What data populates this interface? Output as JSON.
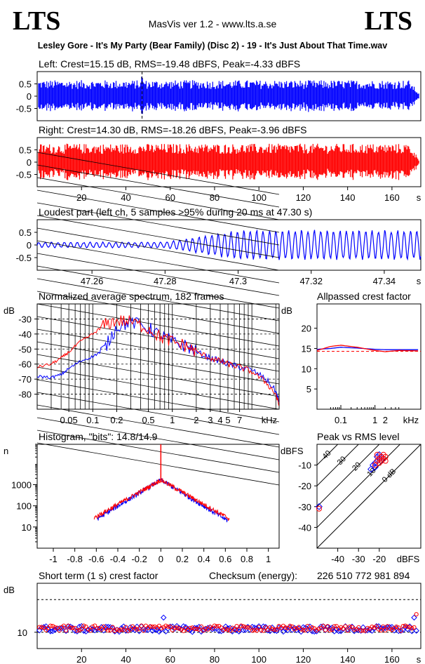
{
  "header": {
    "logo_left": "LTS",
    "logo_right": "LTS",
    "app_title": "MasVis ver 1.2 - www.lts.a.se",
    "file_title": "Lesley Gore - It's My Party (Bear Family) (Disc 2) - 19 - It's Just About That Time.wav"
  },
  "colors": {
    "left": "#0000ff",
    "right": "#ff0000",
    "axis": "#000000",
    "grid": "#000000"
  },
  "chart_data": [
    {
      "id": "left_waveform",
      "type": "area",
      "title": "Left: Crest=15.15 dB, RMS=-19.48 dBFS, Peak=-4.33 dBFS",
      "ylim": [
        -1,
        1
      ],
      "yticks": [
        "0.5",
        "0",
        "-0.5"
      ],
      "ytick_values": [
        0.5,
        0,
        -0.5
      ],
      "xlim": [
        0,
        173
      ],
      "loudest_marker_s": 47.3,
      "series": [
        {
          "color": "#0000ff",
          "amplitude": 0.65
        }
      ]
    },
    {
      "id": "right_waveform",
      "type": "area",
      "title": "Right: Crest=14.30 dB, RMS=-18.26 dBFS, Peak=-3.96 dBFS",
      "ylim": [
        -1,
        1
      ],
      "yticks": [
        "0.5",
        "0",
        "-0.5"
      ],
      "ytick_values": [
        0.5,
        0,
        -0.5
      ],
      "xlim": [
        0,
        173
      ],
      "xticks": [
        "20",
        "40",
        "60",
        "80",
        "100",
        "120",
        "140",
        "160"
      ],
      "xtick_values": [
        20,
        40,
        60,
        80,
        100,
        120,
        140,
        160
      ],
      "xunit": "s",
      "series": [
        {
          "color": "#ff0000",
          "amplitude": 0.75
        }
      ]
    },
    {
      "id": "loudest_part",
      "type": "line",
      "title": "Loudest part (left  ch, 5 samples >95% during 20 ms at 47.30 s)",
      "ylim": [
        -1,
        1
      ],
      "yticks": [
        "0.5",
        "0",
        "-0.5"
      ],
      "ytick_values": [
        0.5,
        0,
        -0.5
      ],
      "xlim": [
        47.245,
        47.35
      ],
      "xticks": [
        "47.26",
        "47.28",
        "47.3",
        "47.32",
        "47.34"
      ],
      "xtick_values": [
        47.26,
        47.28,
        47.3,
        47.32,
        47.34
      ],
      "xunit": "s",
      "series": [
        {
          "color": "#0000ff"
        }
      ]
    },
    {
      "id": "spectrum",
      "type": "line",
      "title": "Normalized average spectrum, 182 frames",
      "ylabel": "dB",
      "xunit": "kHz",
      "xscale": "log",
      "xlim": [
        0.02,
        22
      ],
      "ylim": [
        -90,
        -20
      ],
      "yticks": [
        "-30",
        "-40",
        "-50",
        "-60",
        "-70",
        "-80"
      ],
      "ytick_values": [
        -30,
        -40,
        -50,
        -60,
        -70,
        -80
      ],
      "xticks": [
        "0.05",
        "0.1",
        "0.2",
        "0.5",
        "1",
        "2",
        "3",
        "4",
        "5",
        "7"
      ],
      "xtick_values": [
        0.05,
        0.1,
        0.2,
        0.5,
        1,
        2,
        3,
        4,
        5,
        7
      ],
      "series": [
        {
          "name": "",
          "color": "#0000ff",
          "x": [
            0.02,
            0.03,
            0.04,
            0.05,
            0.07,
            0.1,
            0.14,
            0.2,
            0.3,
            0.5,
            0.7,
            1,
            1.5,
            2,
            3,
            4,
            5,
            7,
            10,
            15,
            20,
            22
          ],
          "y": [
            -68,
            -69,
            -67,
            -63,
            -58,
            -55,
            -50,
            -35,
            -32,
            -36,
            -41,
            -45,
            -48,
            -52,
            -56,
            -58,
            -60,
            -62,
            -64,
            -70,
            -78,
            -86
          ]
        },
        {
          "name": "",
          "color": "#ff0000",
          "x": [
            0.02,
            0.03,
            0.04,
            0.05,
            0.07,
            0.1,
            0.14,
            0.2,
            0.3,
            0.5,
            0.7,
            1,
            1.5,
            2,
            3,
            4,
            5,
            7,
            10,
            15,
            20,
            22
          ],
          "y": [
            -62,
            -60,
            -56,
            -52,
            -45,
            -40,
            -34,
            -31,
            -32,
            -36,
            -42,
            -45,
            -48,
            -52,
            -56,
            -58,
            -60,
            -62,
            -65,
            -72,
            -80,
            -88
          ]
        }
      ]
    },
    {
      "id": "allpassed_crest",
      "type": "line",
      "title": "Allpassed crest factor",
      "ylabel": "dB",
      "xunit": "kHz",
      "xscale": "log",
      "xlim": [
        0.02,
        22
      ],
      "ylim": [
        0,
        26
      ],
      "yticks": [
        "20",
        "15",
        "10",
        "5"
      ],
      "ytick_values": [
        20,
        15,
        10,
        5
      ],
      "xticks": [
        "0.1",
        "1",
        "2"
      ],
      "xtick_values": [
        0.1,
        1,
        2
      ],
      "dashed_ref": 14.3,
      "series": [
        {
          "color": "#0000ff",
          "x": [
            0.02,
            0.05,
            0.1,
            0.3,
            1,
            2,
            5,
            22
          ],
          "y": [
            14.8,
            15.0,
            15.3,
            15.1,
            14.8,
            14.7,
            14.7,
            14.7
          ]
        },
        {
          "color": "#ff0000",
          "x": [
            0.02,
            0.05,
            0.1,
            0.3,
            1,
            2,
            5,
            22
          ],
          "y": [
            14.5,
            15.5,
            15.8,
            15.3,
            14.5,
            14.2,
            14.5,
            14.4
          ]
        }
      ]
    },
    {
      "id": "histogram",
      "type": "line",
      "title": "Histogram, \"bits\": 14.8/14.9",
      "ylabel": "n",
      "yscale": "log",
      "xlim": [
        -1.15,
        1.1
      ],
      "ylim": [
        1,
        80000
      ],
      "yticks": [
        "1000",
        "100",
        "10"
      ],
      "ytick_values": [
        1000,
        100,
        10
      ],
      "xticks": [
        "-1",
        "-0.8",
        "-0.6",
        "-0.4",
        "-0.2",
        "0",
        "0.2",
        "0.4",
        "0.6",
        "0.8",
        "1"
      ],
      "xtick_values": [
        -1,
        -0.8,
        -0.6,
        -0.4,
        -0.2,
        0,
        0.2,
        0.4,
        0.6,
        0.8,
        1
      ],
      "peak_count": 1700,
      "series": [
        {
          "color": "#0000ff",
          "x_min": -0.59,
          "x_max": 0.62,
          "spread": 0.14
        },
        {
          "color": "#ff0000",
          "x_min": -0.62,
          "x_max": 0.64,
          "spread": 0.15
        }
      ]
    },
    {
      "id": "peak_vs_rms",
      "type": "scatter",
      "title": "Peak vs RMS level",
      "ylabel": "dBFS",
      "xunit": "dBFS",
      "xlim": [
        -50,
        0
      ],
      "ylim": [
        -50,
        0
      ],
      "yticks": [
        "-10",
        "-20",
        "-30",
        "-40"
      ],
      "ytick_values": [
        -10,
        -20,
        -30,
        -40
      ],
      "xticks": [
        "-40",
        "-30",
        "-20"
      ],
      "xtick_values": [
        -40,
        -30,
        -20
      ],
      "diagonal_labels": [
        "40",
        "30",
        "20",
        "10",
        "0 dB"
      ],
      "diagonal_offsets": [
        40,
        30,
        20,
        10,
        0
      ],
      "series": [
        {
          "color": "#0000ff",
          "x": [
            -23,
            -22,
            -21,
            -20,
            -19,
            -18,
            -22,
            -21,
            -20,
            -24,
            -19,
            -49
          ],
          "y": [
            -10,
            -11,
            -8,
            -7,
            -6,
            -7,
            -9,
            -6,
            -5,
            -12,
            -8,
            -30
          ]
        },
        {
          "color": "#ff0000",
          "x": [
            -21,
            -20,
            -19,
            -18,
            -17,
            -20,
            -19,
            -18,
            -21,
            -22,
            -17,
            -49
          ],
          "y": [
            -8,
            -7,
            -6,
            -5,
            -6,
            -9,
            -8,
            -7,
            -5,
            -10,
            -8,
            -31
          ]
        }
      ]
    },
    {
      "id": "short_term_crest",
      "type": "scatter",
      "title": "Short term (1 s) crest factor",
      "checksum_label": "Checksum (energy):",
      "checksum_value": "226 510 772 981 894",
      "ylabel": "dB",
      "xlim": [
        0,
        173
      ],
      "ylim": [
        5,
        25
      ],
      "yticks": [
        "10"
      ],
      "ytick_values": [
        10
      ],
      "dashed_refs": [
        10,
        20
      ],
      "xticks": [
        "20",
        "40",
        "60",
        "80",
        "100",
        "120",
        "140",
        "160"
      ],
      "xtick_values": [
        20,
        40,
        60,
        80,
        100,
        120,
        140,
        160
      ],
      "xunit": "s",
      "series": [
        {
          "color": "#0000ff",
          "base": 11.0,
          "spread": 0.9
        },
        {
          "color": "#ff0000",
          "base": 11.2,
          "spread": 0.8
        }
      ]
    }
  ]
}
